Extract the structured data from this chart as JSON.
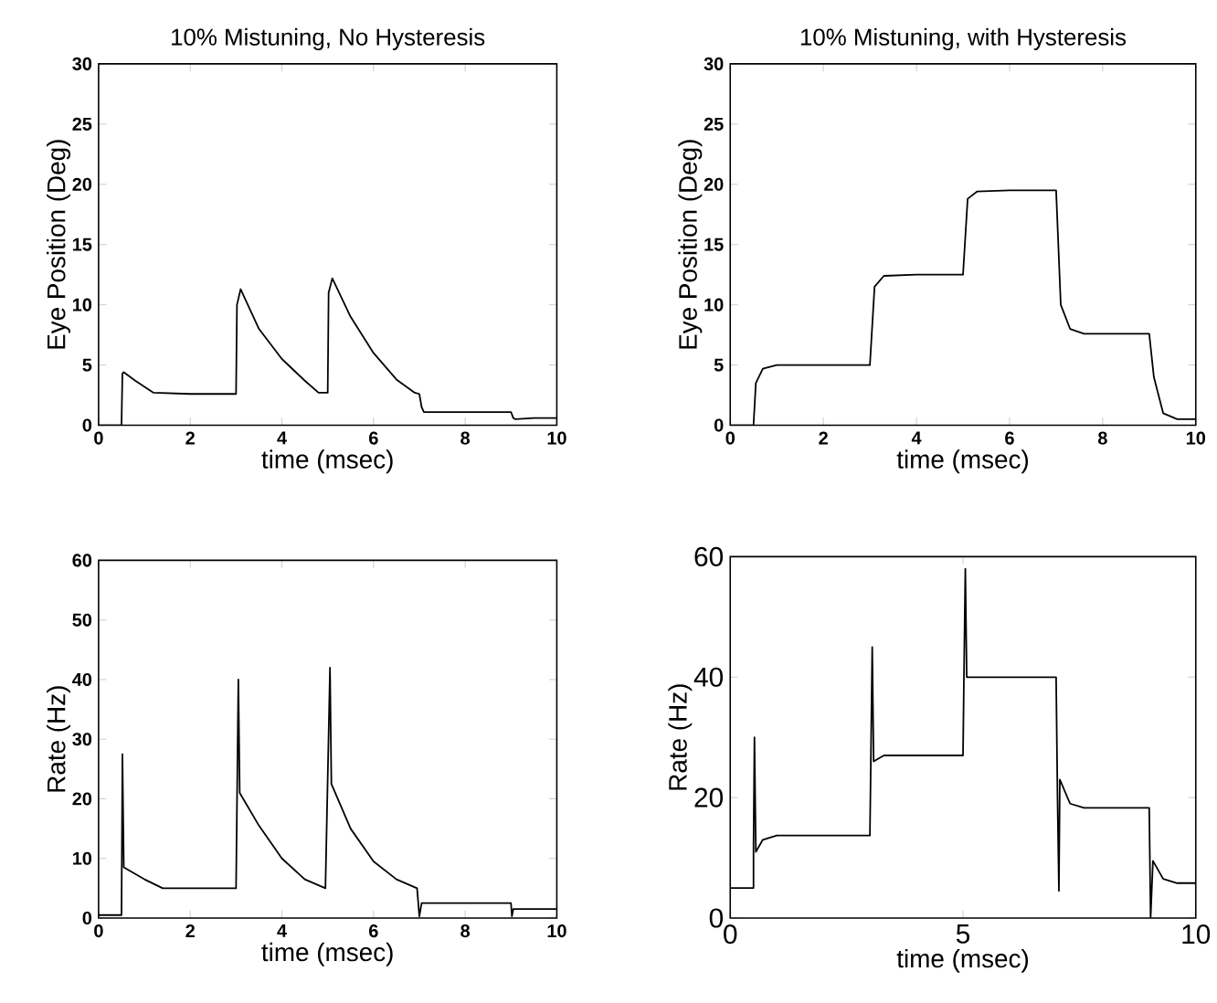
{
  "chart_data": [
    {
      "type": "line",
      "title": "10% Mistuning, No Hysteresis",
      "xlabel": "time (msec)",
      "ylabel": "Eye Position (Deg)",
      "color": "#000000",
      "x": [
        0,
        0.5,
        0.52,
        0.55,
        0.8,
        1.2,
        2.0,
        3.0,
        3.02,
        3.1,
        3.5,
        4.0,
        4.5,
        4.8,
        5.0,
        5.02,
        5.1,
        5.5,
        6.0,
        6.5,
        6.9,
        7.0,
        7.05,
        7.1,
        8.0,
        9.0,
        9.05,
        9.1,
        9.5,
        10
      ],
      "values": [
        0,
        0,
        4.3,
        4.4,
        3.7,
        2.7,
        2.6,
        2.6,
        10,
        11.3,
        8.0,
        5.5,
        3.7,
        2.7,
        2.7,
        11,
        12.2,
        9.0,
        6.0,
        3.8,
        2.7,
        2.6,
        1.5,
        1.1,
        1.1,
        1.1,
        0.6,
        0.5,
        0.6,
        0.6
      ],
      "xlim": [
        0,
        10
      ],
      "ylim": [
        0,
        30
      ],
      "xticks": [
        0,
        2,
        4,
        6,
        8,
        10
      ],
      "yticks": [
        0,
        5,
        10,
        15,
        20,
        25,
        30
      ]
    },
    {
      "type": "line",
      "title": "10% Mistuning, with Hysteresis",
      "xlabel": "time (msec)",
      "ylabel": "Eye Position (Deg)",
      "color": "#000000",
      "x": [
        0,
        0.5,
        0.55,
        0.7,
        1.0,
        2,
        3.0,
        3.1,
        3.3,
        4,
        5.0,
        5.1,
        5.3,
        6,
        7.0,
        7.1,
        7.3,
        7.6,
        8,
        9.0,
        9.1,
        9.3,
        9.6,
        10
      ],
      "values": [
        0,
        0,
        3.5,
        4.7,
        5,
        5,
        5,
        11.5,
        12.4,
        12.5,
        12.5,
        18.8,
        19.4,
        19.5,
        19.5,
        10,
        8,
        7.6,
        7.6,
        7.6,
        4,
        1,
        0.5,
        0.5
      ],
      "xlim": [
        0,
        10
      ],
      "ylim": [
        0,
        30
      ],
      "xticks": [
        0,
        2,
        4,
        6,
        8,
        10
      ],
      "yticks": [
        0,
        5,
        10,
        15,
        20,
        25,
        30
      ]
    },
    {
      "type": "line",
      "xlabel": "time (msec)",
      "ylabel": "Rate (Hz)",
      "color": "#000000",
      "x": [
        0,
        0.5,
        0.52,
        0.55,
        1.0,
        1.4,
        3.0,
        3.05,
        3.08,
        3.5,
        4,
        4.5,
        4.95,
        5.05,
        5.08,
        5.5,
        6,
        6.5,
        6.95,
        7.0,
        7.05,
        9.0,
        9.02,
        9.05,
        10
      ],
      "values": [
        0.5,
        0.5,
        27.5,
        8.5,
        6.5,
        5,
        5,
        40,
        21,
        15.5,
        10,
        6.5,
        5,
        42,
        22.5,
        15,
        9.5,
        6.5,
        5,
        0.3,
        2.5,
        2.5,
        0.3,
        1.5,
        1.5
      ],
      "xlim": [
        0,
        10
      ],
      "ylim": [
        0,
        60
      ],
      "xticks": [
        0,
        2,
        4,
        6,
        8,
        10
      ],
      "yticks": [
        0,
        10,
        20,
        30,
        40,
        50,
        60
      ]
    },
    {
      "type": "line",
      "xlabel": "time (msec)",
      "ylabel": "Rate (Hz)",
      "color": "#000000",
      "x": [
        0,
        0.5,
        0.5,
        0.52,
        0.55,
        0.7,
        1.0,
        3.0,
        3.02,
        3.05,
        3.08,
        3.3,
        5.0,
        5.02,
        5.05,
        5.08,
        7.0,
        7.03,
        7.06,
        7.08,
        7.3,
        7.6,
        9.0,
        9.03,
        9.08,
        9.3,
        9.6,
        10
      ],
      "values": [
        5,
        5,
        12,
        30,
        11,
        13,
        13.7,
        13.7,
        26,
        45,
        26,
        27,
        27,
        40,
        58,
        40,
        40,
        20,
        4.5,
        23,
        19,
        18.3,
        18.3,
        0,
        9.5,
        6.5,
        5.8,
        5.8
      ],
      "xlim": [
        0,
        10
      ],
      "ylim": [
        0,
        60
      ],
      "xticks": [
        0,
        5,
        10
      ],
      "yticks": [
        0,
        20,
        40,
        60
      ]
    }
  ]
}
